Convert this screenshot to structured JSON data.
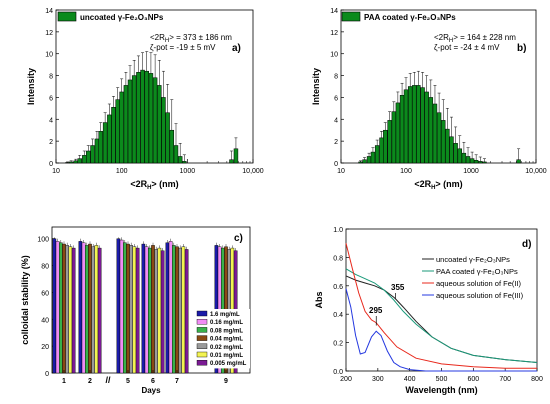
{
  "panels": {
    "a": {
      "letter": "a)",
      "legend": "uncoated γ-Fe₂O₃NPs",
      "stat1": "<2R",
      "stat1_sub": "H",
      "stat1_rest": "> = 373 ± 186 nm",
      "stat2": "ζ-pot = -19 ± 5 mV"
    },
    "b": {
      "letter": "b)",
      "legend": "PAA coated γ-Fe₂O₃NPs",
      "stat1": "<2R",
      "stat1_sub": "H",
      "stat1_rest": "> = 164 ± 228 nm",
      "stat2": "ζ-pot = -24 ± 4 mV"
    },
    "c": {
      "letter": "c)"
    },
    "d": {
      "letter": "d)",
      "annot1": "295",
      "annot2": "355"
    }
  },
  "colors": {
    "green": "#0b8a1c",
    "blue": "#1b1ba8",
    "pink": "#f08cf5",
    "lgreen": "#38b14b",
    "brown": "#8a4a14",
    "gray": "#9a9a9a",
    "yellow": "#f3f352",
    "purple": "#7a1a93"
  },
  "chart_data": [
    {
      "type": "bar",
      "panel": "a",
      "xlabel": "<2R_H> (nm)",
      "ylabel": "Intensity",
      "xscale": "log",
      "xlim": [
        10,
        10000
      ],
      "ylim": [
        0,
        14
      ],
      "xticks": [
        "10",
        "100",
        "1000",
        "10,000"
      ],
      "yticks": [
        "0",
        "2",
        "4",
        "6",
        "8",
        "10",
        "12",
        "14"
      ],
      "series": [
        {
          "name": "uncoated γ-Fe₂O₃NPs"
        }
      ],
      "x": [
        15,
        17,
        20,
        23,
        27,
        31,
        36,
        42,
        48,
        56,
        65,
        75,
        87,
        100,
        116,
        134,
        155,
        180,
        208,
        241,
        279,
        323,
        374,
        433,
        501,
        580,
        672,
        778,
        900,
        4700,
        5500
      ],
      "values": [
        0.05,
        0.1,
        0.2,
        0.4,
        0.7,
        1.1,
        1.6,
        2.2,
        2.9,
        3.7,
        4.4,
        5.1,
        5.8,
        6.5,
        7.1,
        7.6,
        8.0,
        8.3,
        8.5,
        8.4,
        8.2,
        7.8,
        7.1,
        6.0,
        4.6,
        3.0,
        1.6,
        0.6,
        0.15,
        0.3,
        1.3
      ],
      "errors": [
        0.05,
        0.1,
        0.15,
        0.3,
        0.4,
        0.5,
        0.6,
        0.7,
        0.8,
        0.9,
        1.0,
        1.0,
        1.1,
        1.2,
        1.2,
        1.3,
        1.4,
        1.5,
        1.6,
        1.8,
        1.9,
        2.1,
        2.3,
        2.4,
        2.6,
        2.8,
        2.0,
        1.2,
        0.6,
        0.8,
        1.0
      ]
    },
    {
      "type": "bar",
      "panel": "b",
      "xlabel": "<2R_H> (nm)",
      "ylabel": "Intensity",
      "xscale": "log",
      "xlim": [
        10,
        10000
      ],
      "ylim": [
        0,
        14
      ],
      "xticks": [
        "10",
        "100",
        "1000",
        "10,000"
      ],
      "yticks": [
        "0",
        "2",
        "4",
        "6",
        "8",
        "10",
        "12",
        "14"
      ],
      "series": [
        {
          "name": "PAA coated γ-Fe₂O₃NPs"
        }
      ],
      "x": [
        20,
        23,
        27,
        31,
        36,
        42,
        48,
        56,
        65,
        75,
        87,
        100,
        116,
        134,
        155,
        180,
        208,
        241,
        279,
        323,
        374,
        433,
        501,
        580,
        672,
        778,
        900,
        1040,
        1200,
        1390,
        1610,
        5400
      ],
      "values": [
        0.1,
        0.3,
        0.6,
        1.0,
        1.6,
        2.3,
        3.0,
        3.9,
        4.7,
        5.5,
        6.2,
        6.7,
        7.0,
        7.1,
        7.1,
        6.9,
        6.5,
        6.0,
        5.4,
        4.6,
        3.9,
        3.1,
        2.4,
        1.8,
        1.3,
        0.9,
        0.6,
        0.4,
        0.25,
        0.15,
        0.1,
        0.3
      ],
      "errors": [
        0.1,
        0.2,
        0.3,
        0.4,
        0.5,
        0.6,
        0.7,
        0.8,
        0.9,
        1.0,
        1.1,
        1.1,
        1.2,
        1.2,
        1.3,
        1.4,
        1.5,
        1.6,
        1.7,
        1.8,
        1.9,
        1.9,
        1.8,
        1.5,
        1.2,
        1.0,
        0.8,
        0.6,
        0.5,
        0.4,
        0.3,
        1.0
      ]
    },
    {
      "type": "bar",
      "panel": "c",
      "xlabel": "Days",
      "ylabel": "colloidal stability (%)",
      "ylim": [
        0,
        100
      ],
      "yticks": [
        "0",
        "20",
        "40",
        "60",
        "80",
        "100"
      ],
      "categories": [
        "1",
        "2",
        "5",
        "6",
        "7",
        "9"
      ],
      "axis_break": "//",
      "series": [
        {
          "name": "1.6 mg/mL",
          "values": [
            100,
            98,
            100,
            96,
            97,
            95
          ]
        },
        {
          "name": "0.16 mg/mL",
          "values": [
            98,
            97,
            99,
            94,
            98,
            94
          ]
        },
        {
          "name": "0.08 mg/mL",
          "values": [
            97,
            95,
            97,
            93,
            95,
            93
          ]
        },
        {
          "name": "0.04 mg/mL",
          "values": [
            96,
            96,
            96,
            95,
            94,
            94
          ]
        },
        {
          "name": "0.02 mg/mL",
          "values": [
            95,
            94,
            95,
            92,
            93,
            92
          ]
        },
        {
          "name": "0.01 mg/mL",
          "values": [
            94,
            95,
            94,
            93,
            94,
            93
          ]
        },
        {
          "name": "0.005 mg/mL",
          "values": [
            93,
            93,
            93,
            91,
            92,
            91
          ]
        }
      ]
    },
    {
      "type": "line",
      "panel": "d",
      "xlabel": "Wavelength (nm)",
      "ylabel": "Abs",
      "xlim": [
        200,
        800
      ],
      "ylim": [
        0,
        1.0
      ],
      "xticks": [
        "200",
        "300",
        "400",
        "500",
        "600",
        "700",
        "800"
      ],
      "yticks": [
        "0.0",
        "0.2",
        "0.4",
        "0.6",
        "0.8",
        "1.0"
      ],
      "series": [
        {
          "name": "uncoated γ-Fe₂O₃NPs",
          "x": [
            200,
            230,
            260,
            290,
            320,
            350,
            355,
            380,
            420,
            470,
            530,
            600,
            700,
            800
          ],
          "values": [
            0.67,
            0.64,
            0.62,
            0.6,
            0.57,
            0.52,
            0.51,
            0.45,
            0.35,
            0.24,
            0.16,
            0.11,
            0.08,
            0.06
          ]
        },
        {
          "name": "PAA coated γ-Fe₂O₃NPs",
          "x": [
            200,
            230,
            260,
            290,
            320,
            350,
            380,
            420,
            470,
            530,
            600,
            700,
            800
          ],
          "values": [
            0.72,
            0.68,
            0.65,
            0.62,
            0.57,
            0.5,
            0.42,
            0.33,
            0.24,
            0.16,
            0.11,
            0.08,
            0.06
          ]
        },
        {
          "name": "aqueous solution of Fe(II)",
          "x": [
            200,
            220,
            240,
            260,
            280,
            295,
            320,
            360,
            420,
            500,
            600,
            700,
            800
          ],
          "values": [
            0.9,
            0.72,
            0.55,
            0.42,
            0.36,
            0.34,
            0.27,
            0.17,
            0.09,
            0.05,
            0.03,
            0.02,
            0.02
          ]
        },
        {
          "name": "aqueous solution of Fe(III)",
          "x": [
            200,
            215,
            230,
            245,
            260,
            280,
            295,
            310,
            330,
            350,
            370,
            400,
            450,
            500,
            800
          ],
          "values": [
            0.58,
            0.45,
            0.25,
            0.12,
            0.13,
            0.24,
            0.28,
            0.25,
            0.14,
            0.06,
            0.03,
            0.01,
            0.0,
            0.0,
            0.0
          ]
        }
      ]
    }
  ]
}
